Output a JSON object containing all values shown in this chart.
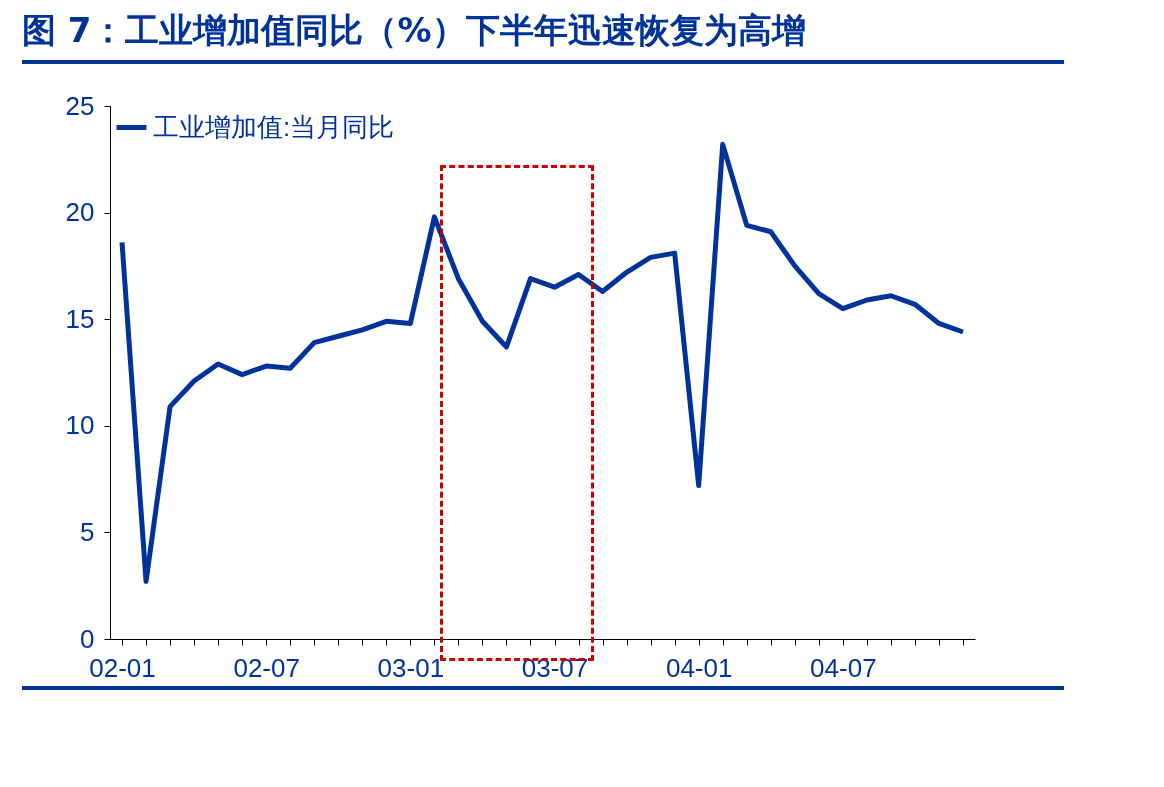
{
  "chart_data": {
    "type": "line",
    "title": "图 7：工业增加值同比（%）下半年迅速恢复为高增",
    "categories": [
      "02-01",
      null,
      null,
      null,
      null,
      null,
      "02-07",
      null,
      null,
      null,
      null,
      null,
      "03-01",
      null,
      null,
      null,
      null,
      null,
      "03-07",
      null,
      null,
      null,
      null,
      null,
      "04-01",
      null,
      null,
      null,
      null,
      null,
      "04-07",
      null,
      null,
      null,
      null,
      null
    ],
    "series": [
      {
        "name": "工业增加值:当月同比",
        "color": "#003399",
        "values": [
          18.6,
          2.7,
          10.9,
          12.1,
          12.9,
          12.4,
          12.8,
          12.7,
          13.9,
          14.2,
          14.5,
          14.9,
          14.8,
          19.8,
          16.9,
          14.9,
          13.7,
          16.9,
          16.5,
          17.1,
          16.3,
          17.2,
          17.9,
          18.1,
          7.2,
          23.2,
          19.4,
          19.1,
          17.5,
          16.2,
          15.5,
          15.9,
          16.1,
          15.7,
          14.8,
          14.4
        ]
      }
    ],
    "ylim": [
      0,
      25
    ],
    "yticks": [
      0,
      5,
      10,
      15,
      20,
      25
    ],
    "grid": false,
    "legend": "top left",
    "marker": "none",
    "line_style": "solid"
  }
}
